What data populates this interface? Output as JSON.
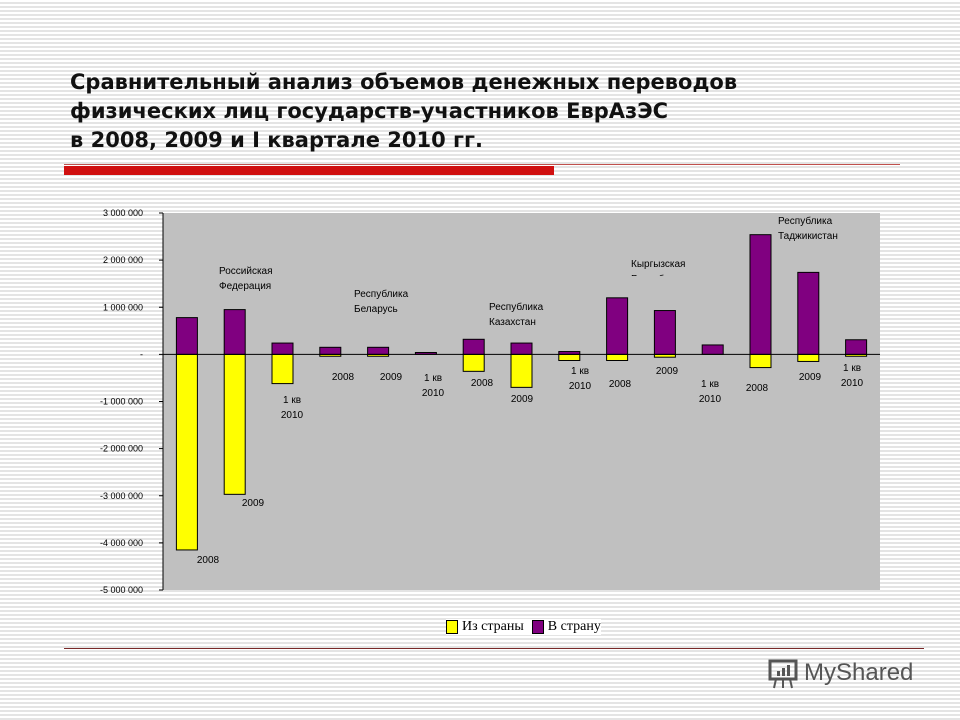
{
  "title": {
    "lines": [
      "Сравнительный анализ объемов денежных переводов",
      "физических лиц государств-участников ЕврАзЭС",
      "в 2008, 2009 и I квартале 2010 гг."
    ]
  },
  "chart_data": {
    "type": "bar",
    "stacked": true,
    "ylim": [
      -5000000,
      3000000
    ],
    "yticks": [
      3000000,
      2000000,
      1000000,
      0,
      -1000000,
      -2000000,
      -3000000,
      -4000000,
      -5000000
    ],
    "ytick_labels": [
      "3 000 000",
      "2 000 000",
      "1 000 000",
      "-",
      "-1 000 000",
      "-2 000 000",
      "-3 000 000",
      "-4 000 000",
      "-5 000 000"
    ],
    "grid": false,
    "legend_position": "bottom",
    "groups": [
      "Российская Федерация",
      "Республика Беларусь",
      "Республика Казахстан",
      "Кыргызская Республика",
      "Республика Таджикистан"
    ],
    "categories": [
      "2008",
      "2009",
      "1 кв 2010",
      "2008",
      "2009",
      "1 кв 2010",
      "2008",
      "2009",
      "1 кв 2010",
      "2008",
      "2009",
      "1 кв 2010",
      "2008",
      "2009",
      "1 кв 2010"
    ],
    "series": [
      {
        "name": "Из страны",
        "color": "#ffff00",
        "values": [
          -4150000,
          -2970000,
          -620000,
          -40000,
          -40000,
          0,
          -360000,
          -700000,
          -130000,
          -130000,
          -60000,
          0,
          -280000,
          -150000,
          -40000
        ]
      },
      {
        "name": "В страну",
        "color": "#800080",
        "values": [
          780000,
          950000,
          240000,
          150000,
          150000,
          40000,
          320000,
          240000,
          60000,
          1200000,
          930000,
          200000,
          2540000,
          1740000,
          310000
        ]
      }
    ],
    "plot_background": "#c0c0c0"
  },
  "watermark": "MyShared"
}
